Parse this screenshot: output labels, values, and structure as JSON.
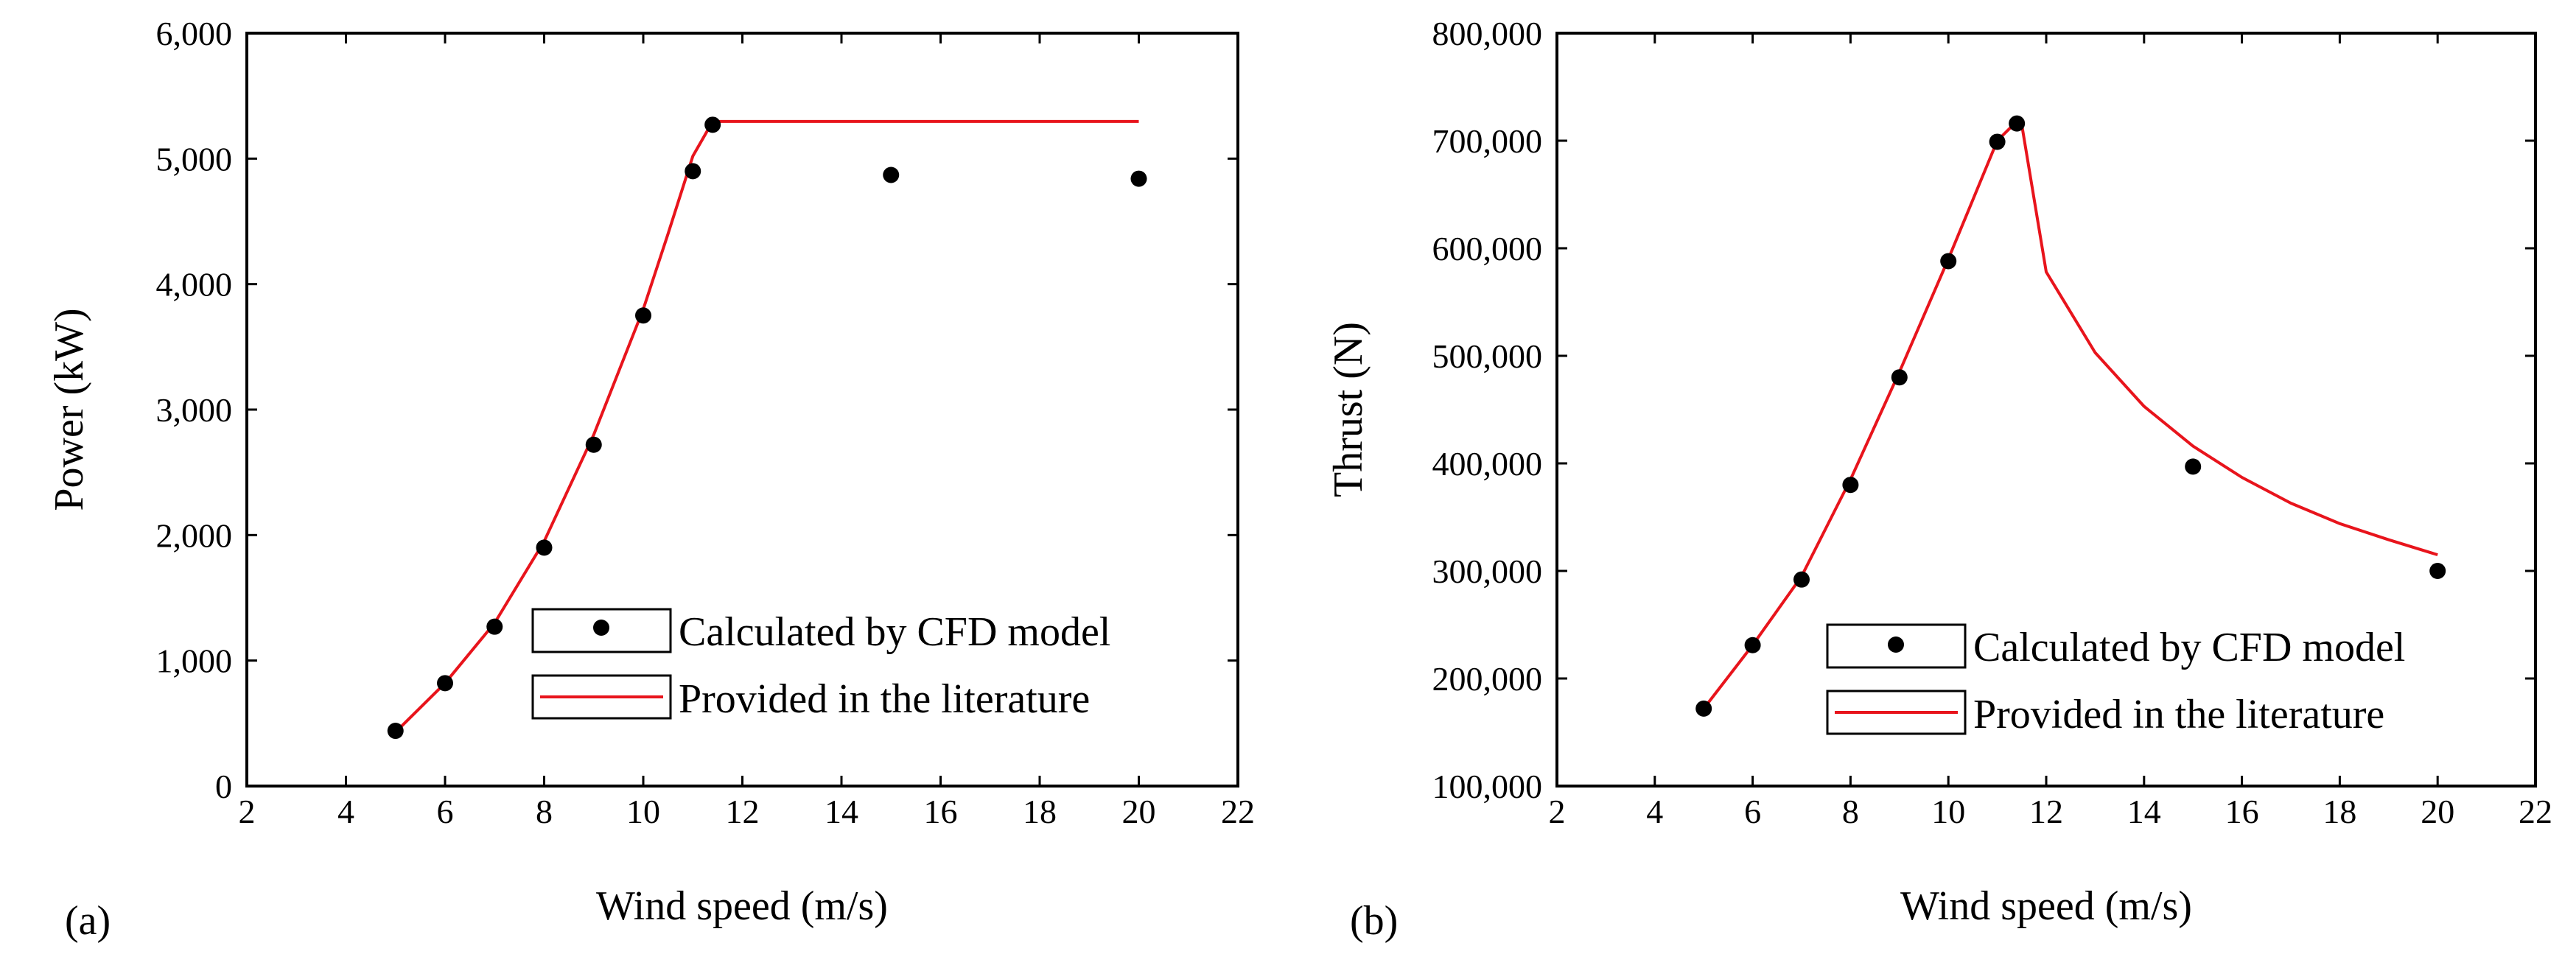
{
  "chart_data": [
    {
      "type": "scatter+line",
      "panel_label": "(a)",
      "title": "",
      "xlabel": "Wind speed (m/s)",
      "ylabel": "Power (kW)",
      "xlim": [
        2,
        22
      ],
      "ylim": [
        0,
        6000
      ],
      "x_ticks": [
        2,
        4,
        6,
        8,
        10,
        12,
        14,
        16,
        18,
        20,
        22
      ],
      "x_tick_labels": [
        "2",
        "4",
        "6",
        "8",
        "10",
        "12",
        "14",
        "16",
        "18",
        "20",
        "22"
      ],
      "y_ticks": [
        0,
        1000,
        2000,
        3000,
        4000,
        5000,
        6000
      ],
      "y_tick_labels": [
        "0",
        "1,000",
        "2,000",
        "3,000",
        "4,000",
        "5,000",
        "6,000"
      ],
      "legend_position": "bottom-right",
      "series": [
        {
          "name": "Calculated by CFD model",
          "kind": "scatter",
          "color": "#000000",
          "x": [
            5,
            6,
            7,
            8,
            9,
            10,
            11,
            11.4,
            15,
            20
          ],
          "y": [
            440,
            820,
            1270,
            1900,
            2720,
            3750,
            4900,
            5270,
            4870,
            4840
          ]
        },
        {
          "name": "Provided in the literature",
          "kind": "line",
          "color": "#e8141c",
          "x": [
            5,
            6,
            7,
            8,
            9,
            10,
            10.5,
            11,
            11.4,
            12,
            14,
            16,
            18,
            20
          ],
          "y": [
            430,
            820,
            1300,
            1950,
            2800,
            3800,
            4400,
            5020,
            5296,
            5296,
            5296,
            5296,
            5296,
            5296
          ]
        }
      ]
    },
    {
      "type": "scatter+line",
      "panel_label": "(b)",
      "title": "",
      "xlabel": "Wind speed (m/s)",
      "ylabel": "Thrust (N)",
      "xlim": [
        2,
        22
      ],
      "ylim": [
        100000,
        800000
      ],
      "x_ticks": [
        2,
        4,
        6,
        8,
        10,
        12,
        14,
        16,
        18,
        20,
        22
      ],
      "x_tick_labels": [
        "2",
        "4",
        "6",
        "8",
        "10",
        "12",
        "14",
        "16",
        "18",
        "20",
        "22"
      ],
      "y_ticks": [
        100000,
        200000,
        300000,
        400000,
        500000,
        600000,
        700000,
        800000
      ],
      "y_tick_labels": [
        "100,000",
        "200,000",
        "300,000",
        "400,000",
        "500,000",
        "600,000",
        "700,000",
        "800,000"
      ],
      "legend_position": "bottom-right",
      "series": [
        {
          "name": "Calculated by CFD model",
          "kind": "scatter",
          "color": "#000000",
          "x": [
            5,
            6,
            7,
            8,
            9,
            10,
            11,
            11.4,
            15,
            20
          ],
          "y": [
            172000,
            231000,
            292000,
            380000,
            480000,
            588000,
            699000,
            716000,
            397000,
            300000
          ]
        },
        {
          "name": "Provided in the literature",
          "kind": "line",
          "color": "#e8141c",
          "x": [
            5,
            6,
            7,
            8,
            9,
            10,
            11,
            11.4,
            11.5,
            12,
            13,
            14,
            15,
            16,
            17,
            18,
            19,
            20
          ],
          "y": [
            172000,
            231000,
            295000,
            385000,
            485000,
            590000,
            700000,
            718000,
            715000,
            578000,
            503000,
            453000,
            416000,
            387000,
            363000,
            344000,
            329000,
            315000
          ]
        }
      ]
    }
  ]
}
